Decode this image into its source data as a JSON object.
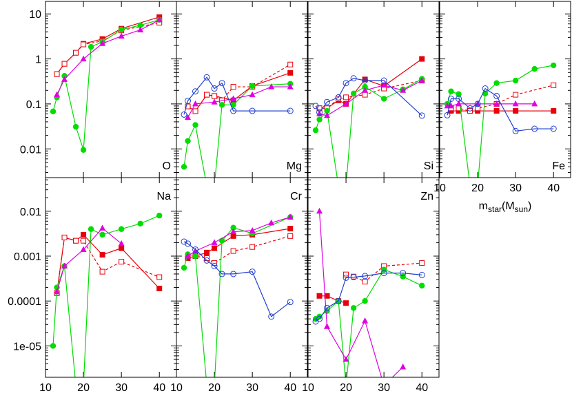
{
  "chart_data": [
    {
      "type": "line",
      "log_y": true,
      "title": "O",
      "label_corner": "lower right",
      "ylim": [
        0.0023,
        19
      ],
      "yticks": [
        0.01,
        0.1,
        1,
        10
      ],
      "ytick_labels": true,
      "xlim": [
        10,
        44.5
      ],
      "xticks": [
        10,
        20,
        30,
        40
      ],
      "xtick_labels": false,
      "series": [
        {
          "color": "#e8000b",
          "marker": "square-filled",
          "dash": false,
          "x": [
            13,
            15,
            18,
            20,
            25,
            30,
            40
          ],
          "values": [
            0.46,
            0.78,
            1.37,
            2.17,
            2.77,
            4.7,
            8.5
          ]
        },
        {
          "color": "#e8000b",
          "marker": "square-open",
          "dash": true,
          "x": [
            13,
            15,
            18,
            20,
            25,
            30,
            40
          ],
          "values": [
            0.46,
            0.78,
            1.37,
            2.1,
            2.5,
            4.3,
            6.4
          ]
        },
        {
          "color": "#00dd00",
          "marker": "circle-filled",
          "dash": false,
          "x": [
            12,
            13,
            15,
            18,
            20,
            22,
            25,
            30,
            35,
            40
          ],
          "values": [
            0.068,
            0.14,
            0.42,
            0.031,
            0.0095,
            1.85,
            2.4,
            4.5,
            5.6,
            7.4
          ]
        },
        {
          "color": "#e000e0",
          "marker": "triangle",
          "dash": false,
          "x": [
            13,
            15,
            20,
            25,
            30,
            35,
            40
          ],
          "values": [
            0.16,
            0.35,
            1.0,
            2.2,
            3.2,
            4.4,
            7.4
          ]
        }
      ]
    },
    {
      "type": "line",
      "log_y": true,
      "title": "Mg",
      "label_corner": "lower right",
      "ylim": [
        0.0023,
        19
      ],
      "yticks": [
        0.01,
        0.1,
        1,
        10
      ],
      "ytick_labels": false,
      "xlim": [
        10,
        44.5
      ],
      "xticks": [
        10,
        20,
        30,
        40
      ],
      "xtick_labels": false,
      "series": [
        {
          "color": "#e8000b",
          "marker": "square-filled",
          "dash": false,
          "x": [
            13,
            15,
            18,
            20,
            25,
            30,
            40
          ],
          "values": [
            0.088,
            0.069,
            0.16,
            0.15,
            0.12,
            0.25,
            0.49
          ]
        },
        {
          "color": "#e8000b",
          "marker": "square-open",
          "dash": true,
          "x": [
            13,
            15,
            18,
            20,
            22,
            25,
            30,
            40
          ],
          "values": [
            0.088,
            0.069,
            0.16,
            0.15,
            0.12,
            0.24,
            0.24,
            0.75
          ]
        },
        {
          "color": "#00dd00",
          "marker": "circle-filled",
          "dash": false,
          "x": [
            12,
            13,
            15,
            18,
            20,
            22,
            25,
            30,
            40
          ],
          "values": [
            0.004,
            0.015,
            0.034,
            0,
            0,
            0.095,
            0.095,
            0.25,
            0.28
          ]
        },
        {
          "color": "#e000e0",
          "marker": "triangle",
          "dash": false,
          "x": [
            13,
            15,
            20,
            25,
            30,
            35,
            40
          ],
          "values": [
            0.05,
            0.1,
            0.11,
            0.13,
            0.16,
            0.24,
            0.24
          ]
        },
        {
          "color": "#2040d0",
          "marker": "circle-open",
          "dash": false,
          "x": [
            12,
            13,
            15,
            18,
            20,
            22,
            25,
            30,
            40
          ],
          "values": [
            0.058,
            0.117,
            0.19,
            0.39,
            0.22,
            0.29,
            0.07,
            0.07,
            0.07
          ]
        }
      ]
    },
    {
      "type": "line",
      "log_y": true,
      "title": "Si",
      "label_corner": "lower right",
      "ylim": [
        0.0023,
        19
      ],
      "yticks": [
        0.01,
        0.1,
        1,
        10
      ],
      "ytick_labels": false,
      "xlim": [
        10,
        44.5
      ],
      "xticks": [
        10,
        20,
        30,
        40
      ],
      "xtick_labels": false,
      "series": [
        {
          "color": "#e8000b",
          "marker": "square-filled",
          "dash": false,
          "x": [
            13,
            15,
            18,
            20,
            25,
            30,
            40
          ],
          "values": [
            0.08,
            0.08,
            0.12,
            0.1,
            0.35,
            0.25,
            1.0
          ]
        },
        {
          "color": "#e8000b",
          "marker": "square-open",
          "dash": true,
          "x": [
            13,
            15,
            18,
            20,
            25,
            30,
            40
          ],
          "values": [
            0.08,
            0.08,
            0.13,
            0.14,
            0.16,
            0.22,
            0.33
          ]
        },
        {
          "color": "#00dd00",
          "marker": "circle-filled",
          "dash": false,
          "x": [
            12,
            13,
            15,
            18,
            20,
            22,
            25,
            30,
            35,
            40
          ],
          "values": [
            0.026,
            0.045,
            0.07,
            0,
            0,
            0.17,
            0.24,
            0.13,
            0.21,
            0.36
          ]
        },
        {
          "color": "#e000e0",
          "marker": "triangle",
          "dash": false,
          "x": [
            13,
            15,
            20,
            25,
            30,
            35,
            40
          ],
          "values": [
            0.06,
            0.055,
            0.1,
            0.2,
            0.26,
            0.2,
            0.33
          ]
        },
        {
          "color": "#2040d0",
          "marker": "circle-open",
          "dash": false,
          "x": [
            12,
            13,
            15,
            18,
            20,
            22,
            25,
            30,
            40
          ],
          "values": [
            0.09,
            0.065,
            0.11,
            0.14,
            0.29,
            0.37,
            0.33,
            0.33,
            0.055
          ]
        }
      ]
    },
    {
      "type": "line",
      "log_y": true,
      "title": "Fe",
      "label_corner": "lower right",
      "ylim": [
        0.0023,
        19
      ],
      "yticks": [
        0.01,
        0.1,
        1,
        10
      ],
      "ytick_labels": false,
      "xlim": [
        10,
        44.5
      ],
      "xticks": [
        10,
        20,
        30,
        40
      ],
      "xtick_labels": true,
      "x_label": [
        "m",
        "star",
        "(M",
        "sun",
        ")"
      ],
      "series": [
        {
          "color": "#e8000b",
          "marker": "square-filled",
          "dash": false,
          "x": [
            13,
            15,
            18,
            20,
            25,
            30,
            40
          ],
          "values": [
            0.07,
            0.07,
            0.07,
            0.07,
            0.07,
            0.07,
            0.07
          ]
        },
        {
          "color": "#e8000b",
          "marker": "square-open",
          "dash": true,
          "x": [
            13,
            15,
            18,
            20,
            25,
            30,
            40
          ],
          "values": [
            0.08,
            0.08,
            0.07,
            0.08,
            0.1,
            0.16,
            0.26
          ]
        },
        {
          "color": "#00dd00",
          "marker": "circle-filled",
          "dash": false,
          "x": [
            12,
            13,
            15,
            18,
            20,
            22,
            25,
            30,
            35,
            40
          ],
          "values": [
            0.1,
            0.19,
            0.165,
            0,
            0,
            0.17,
            0.29,
            0.33,
            0.6,
            0.72
          ]
        },
        {
          "color": "#e000e0",
          "marker": "triangle",
          "dash": false,
          "x": [
            12,
            13,
            15,
            20,
            25,
            30,
            35
          ],
          "values": [
            0.09,
            0.09,
            0.1,
            0.1,
            0.1,
            0.1,
            0.1
          ]
        },
        {
          "color": "#2040d0",
          "marker": "circle-open",
          "dash": false,
          "x": [
            12,
            13,
            15,
            18,
            20,
            22,
            25,
            30,
            35,
            40
          ],
          "values": [
            0.056,
            0.13,
            0.13,
            0.08,
            0.1,
            0.22,
            0.15,
            0.025,
            0.028,
            0.028
          ]
        }
      ]
    },
    {
      "type": "line",
      "log_y": true,
      "title": "Na",
      "label_corner": "upper right",
      "ylim": [
        2e-06,
        0.056
      ],
      "yticks": [
        {
          "value": 1e-05,
          "label": "1e-05"
        },
        0.0001,
        0.001,
        0.01
      ],
      "ytick_labels": true,
      "xlim": [
        10,
        44.5
      ],
      "xticks": [
        10,
        20,
        30,
        40
      ],
      "xtick_labels": true,
      "x_label": [
        "m",
        "star",
        "(M",
        "sun",
        ")"
      ],
      "series": [
        {
          "color": "#e8000b",
          "marker": "square-filled",
          "dash": false,
          "x": [
            13,
            15,
            18,
            20,
            25,
            30,
            40
          ],
          "values": [
            0.00015,
            0.0026,
            0.0022,
            0.003,
            0.00107,
            0.0015,
            0.00019
          ]
        },
        {
          "color": "#e8000b",
          "marker": "square-open",
          "dash": true,
          "x": [
            13,
            15,
            18,
            20,
            25,
            30,
            40
          ],
          "values": [
            0.00015,
            0.0026,
            0.0022,
            0.0022,
            0.00045,
            0.00075,
            0.00034
          ]
        },
        {
          "color": "#00dd00",
          "marker": "circle-filled",
          "dash": false,
          "x": [
            12,
            13,
            15,
            18,
            20,
            22,
            25,
            30,
            35,
            40
          ],
          "values": [
            1e-05,
            0.0002,
            0.0006,
            0,
            0,
            0.004,
            0.003,
            0.004,
            0.0053,
            0.008
          ]
        },
        {
          "color": "#e000e0",
          "marker": "triangle",
          "dash": false,
          "x": [
            13,
            15,
            20,
            25,
            30
          ],
          "values": [
            0.00016,
            0.0006,
            0.0014,
            0.0042,
            0.0019
          ]
        }
      ]
    },
    {
      "type": "line",
      "log_y": true,
      "title": "Cr",
      "label_corner": "upper right",
      "ylim": [
        2e-06,
        0.056
      ],
      "yticks": [
        {
          "value": 1e-05,
          "label": "1e-05"
        },
        0.0001,
        0.001,
        0.01
      ],
      "ytick_labels": false,
      "xlim": [
        10,
        44.5
      ],
      "xticks": [
        10,
        20,
        30,
        40
      ],
      "xtick_labels": true,
      "x_label": [
        "m",
        "star",
        "(M",
        "sun",
        ")"
      ],
      "series": [
        {
          "color": "#e8000b",
          "marker": "square-filled",
          "dash": false,
          "x": [
            13,
            15,
            18,
            20,
            25,
            30,
            40
          ],
          "values": [
            0.0009,
            0.001,
            0.0012,
            0.0015,
            0.0028,
            0.003,
            0.0041
          ]
        },
        {
          "color": "#e8000b",
          "marker": "square-open",
          "dash": true,
          "x": [
            13,
            15,
            18,
            20,
            25,
            30,
            40
          ],
          "values": [
            0.001,
            0.001,
            0.0009,
            0.0007,
            0.0013,
            0.0016,
            0.0028
          ]
        },
        {
          "color": "#00dd00",
          "marker": "circle-filled",
          "dash": false,
          "x": [
            12,
            13,
            15,
            18,
            20,
            22,
            25,
            30,
            40
          ],
          "values": [
            0.00055,
            0.0011,
            0.001,
            0,
            0,
            0.0022,
            0.0043,
            0.0032,
            0.0074
          ]
        },
        {
          "color": "#e000e0",
          "marker": "triangle",
          "dash": false,
          "x": [
            13,
            15,
            20,
            25,
            30,
            35,
            40
          ],
          "values": [
            0.001,
            0.0013,
            0.002,
            0.0035,
            0.0037,
            0.0055,
            0.0074
          ]
        },
        {
          "color": "#2040d0",
          "marker": "circle-open",
          "dash": false,
          "x": [
            12,
            13,
            15,
            18,
            20,
            22,
            25,
            30,
            35,
            40
          ],
          "values": [
            0.0021,
            0.0019,
            0.0014,
            0.0008,
            0.0006,
            0.0004,
            0.0004,
            0.00045,
            4.5e-05,
            9.5e-05
          ]
        }
      ]
    },
    {
      "type": "line",
      "log_y": true,
      "title": "Zn",
      "label_corner": "upper right",
      "ylim": [
        2e-06,
        0.056
      ],
      "yticks": [
        {
          "value": 1e-05,
          "label": "1e-05"
        },
        0.0001,
        0.001,
        0.01
      ],
      "ytick_labels": false,
      "xlim": [
        10,
        44.5
      ],
      "xticks": [
        10,
        20,
        30,
        40
      ],
      "xtick_labels": true,
      "x_label": [
        "m",
        "star",
        "(M",
        "sun",
        ")"
      ],
      "series": [
        {
          "color": "#e8000b",
          "marker": "square-filled",
          "dash": false,
          "x": [
            13,
            15,
            18,
            20
          ],
          "values": [
            0.00013,
            0.00013,
            0.0001,
            9e-05
          ]
        },
        {
          "color": "#e8000b",
          "marker": "square-open",
          "dash": true,
          "x": [
            20,
            22,
            25,
            30,
            40
          ],
          "values": [
            0.00039,
            0.00035,
            0.00027,
            0.0006,
            0.0007
          ]
        },
        {
          "color": "#00dd00",
          "marker": "circle-filled",
          "dash": false,
          "x": [
            12,
            13,
            15,
            18,
            20,
            22,
            25,
            30,
            35,
            40
          ],
          "values": [
            4e-05,
            4.5e-05,
            6e-05,
            0.0001,
            0,
            7e-05,
            0.0001,
            0.0005,
            0.00035,
            0.00022
          ]
        },
        {
          "color": "#e000e0",
          "marker": "triangle",
          "dash": false,
          "x": [
            13,
            15,
            20,
            25,
            30,
            35
          ],
          "values": [
            0.01,
            2.7e-05,
            5e-06,
            3.6e-05,
            0,
            3.4e-06
          ]
        },
        {
          "color": "#2040d0",
          "marker": "circle-open",
          "dash": false,
          "x": [
            12,
            13,
            15,
            18,
            20,
            22,
            25,
            30,
            35,
            40
          ],
          "values": [
            3.5e-05,
            4e-05,
            7e-05,
            0.0001,
            0.00033,
            0.00034,
            0.00036,
            0.00042,
            0.00042,
            0.00038
          ]
        }
      ]
    }
  ]
}
